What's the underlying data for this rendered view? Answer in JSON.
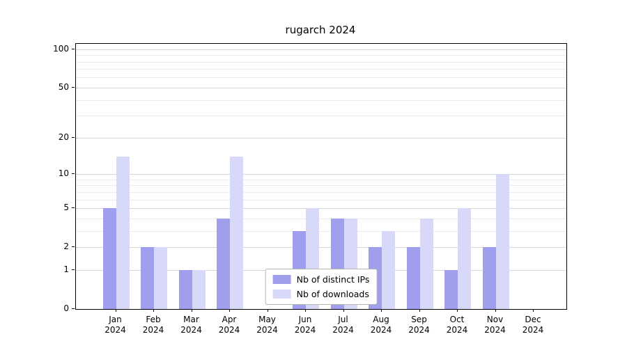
{
  "title": "rugarch 2024",
  "chart_data": {
    "type": "bar",
    "title": "rugarch 2024",
    "categories": [
      "Jan",
      "Feb",
      "Mar",
      "Apr",
      "May",
      "Jun",
      "Jul",
      "Aug",
      "Sep",
      "Oct",
      "Nov",
      "Dec"
    ],
    "year_label": "2024",
    "series": [
      {
        "name": "Nb of distinct IPs",
        "color": "#9f9fee",
        "values": [
          5,
          2,
          1,
          4,
          0,
          3,
          4,
          2,
          2,
          1,
          2,
          0
        ]
      },
      {
        "name": "Nb of downloads",
        "color": "#d8d8f9",
        "values": [
          14,
          2,
          1,
          14,
          0,
          5,
          4,
          3,
          4,
          5,
          10,
          0
        ]
      }
    ],
    "xlabel": "",
    "ylabel": "",
    "yscale": "log1p",
    "ylim": [
      0,
      110
    ],
    "yticks": [
      0,
      1,
      2,
      5,
      10,
      20,
      50,
      100
    ],
    "minor_gridlines": [
      3,
      4,
      6,
      7,
      8,
      9,
      30,
      40,
      60,
      70,
      80,
      90
    ],
    "grid": true,
    "legend_position": "bottom-center"
  },
  "colors": {
    "grid_major": "#d7d7d7",
    "grid_minor": "#ececec",
    "axis": "#000000",
    "background": "#ffffff",
    "series_ips": "#9f9fee",
    "series_downloads": "#d8d8f9"
  }
}
